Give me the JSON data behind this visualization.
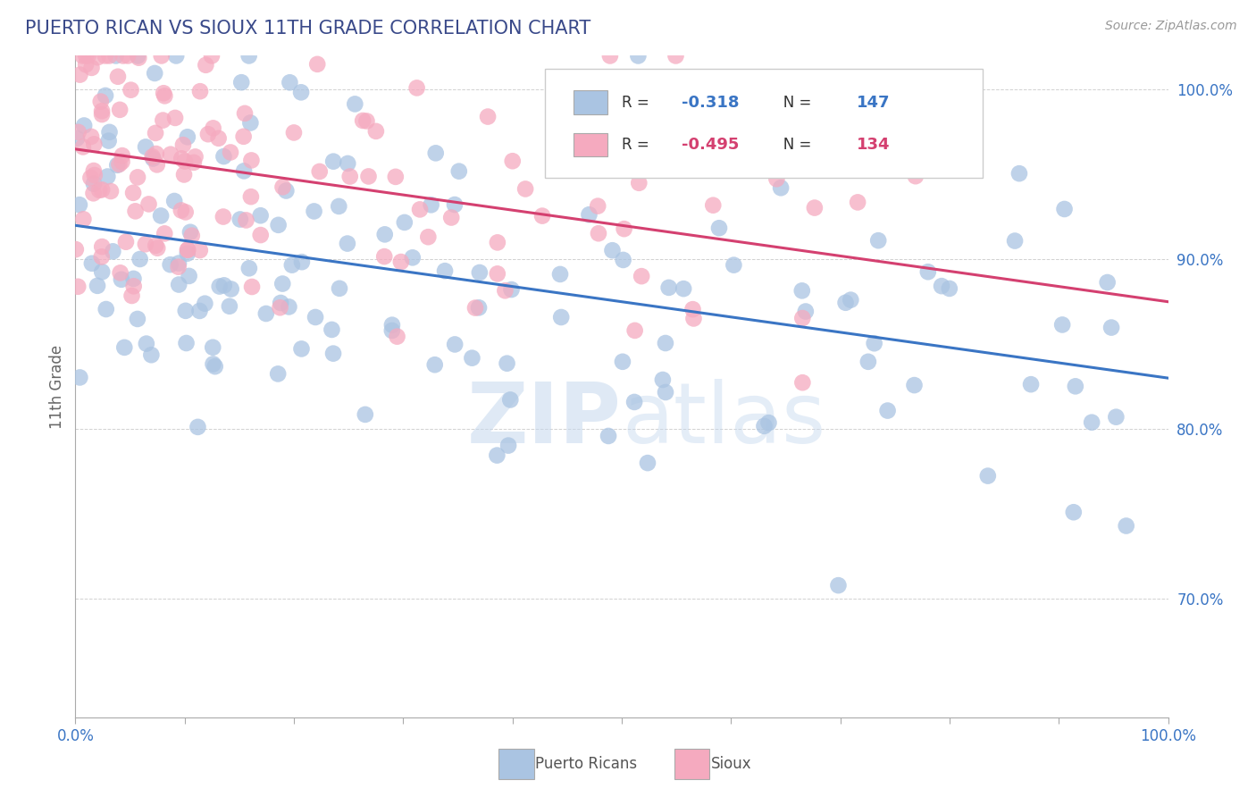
{
  "title": "PUERTO RICAN VS SIOUX 11TH GRADE CORRELATION CHART",
  "source": "Source: ZipAtlas.com",
  "ylabel": "11th Grade",
  "legend_blue_label": "Puerto Ricans",
  "legend_pink_label": "Sioux",
  "blue_R": -0.318,
  "blue_N": 147,
  "pink_R": -0.495,
  "pink_N": 134,
  "blue_color": "#aac4e2",
  "pink_color": "#f5aabf",
  "blue_line_color": "#3a75c4",
  "pink_line_color": "#d44070",
  "watermark_color": "#c5d8ee",
  "background_color": "#ffffff",
  "grid_color": "#cccccc",
  "ytick_color": "#3a75c4",
  "title_color": "#3a4a8a",
  "blue_trend_start": 92.0,
  "blue_trend_end": 83.0,
  "pink_trend_start": 96.5,
  "pink_trend_end": 87.5,
  "ylim_min": 63,
  "ylim_max": 102,
  "xlim_min": 0,
  "xlim_max": 100
}
